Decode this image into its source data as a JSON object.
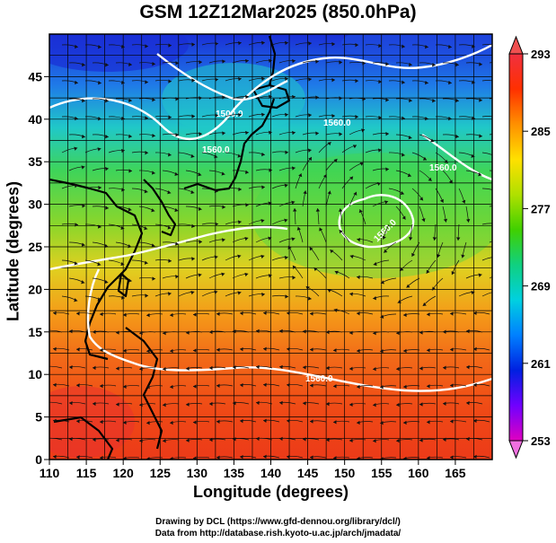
{
  "title": "GSM 12Z12Mar2025 (850.0hPa)",
  "x_axis": {
    "label": "Longitude (degrees)",
    "range": [
      110,
      170
    ],
    "ticks": [
      "110",
      "115",
      "120",
      "125",
      "130",
      "135",
      "140",
      "145",
      "150",
      "155",
      "160",
      "165"
    ],
    "tick_values": [
      110,
      115,
      120,
      125,
      130,
      135,
      140,
      145,
      150,
      155,
      160,
      165
    ]
  },
  "y_axis": {
    "label": "Latitude  (degrees)",
    "range": [
      0,
      50
    ],
    "ticks": [
      "0",
      "5",
      "10",
      "15",
      "20",
      "25",
      "30",
      "35",
      "40",
      "45"
    ],
    "tick_values": [
      0,
      5,
      10,
      15,
      20,
      25,
      30,
      35,
      40,
      45
    ]
  },
  "colorbar": {
    "labels": [
      "293",
      "285",
      "277",
      "269",
      "261",
      "253"
    ],
    "values": [
      293,
      285,
      277,
      269,
      261,
      253
    ],
    "min": 253,
    "max": 293,
    "colors": [
      "#e000c0",
      "#7000ff",
      "#0020e0",
      "#0080ff",
      "#00d0e0",
      "#10d080",
      "#40d000",
      "#b0e000",
      "#ffe000",
      "#ff9000",
      "#ff3000",
      "#f03040"
    ]
  },
  "contours": {
    "labels": [
      "1560.0",
      "1560.0",
      "1560.0",
      "1560.0",
      "1500.0",
      "1560.0"
    ]
  },
  "credits": {
    "line1": "Drawing by DCL (https://www.gfd-dennou.org/library/dcl/)",
    "line2": "Data from http://database.rish.kyoto-u.ac.jp/arch/jmadata/"
  }
}
